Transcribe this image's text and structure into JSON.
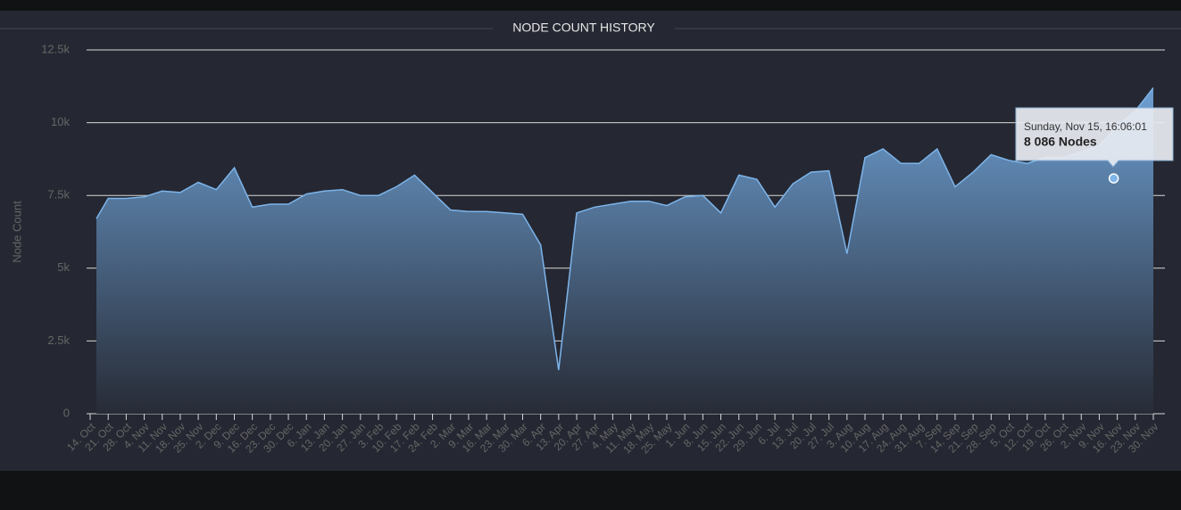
{
  "chart_data": {
    "type": "area",
    "title": "NODE COUNT HISTORY",
    "y_label": "Node Count",
    "categories": [
      "14. Oct",
      "21. Oct",
      "28. Oct",
      "4. Nov",
      "11. Nov",
      "18. Nov",
      "25. Nov",
      "2. Dec",
      "9. Dec",
      "16. Dec",
      "23. Dec",
      "30. Dec",
      "6. Jan",
      "13. Jan",
      "20. Jan",
      "27. Jan",
      "3. Feb",
      "10. Feb",
      "17. Feb",
      "24. Feb",
      "2. Mar",
      "9. Mar",
      "16. Mar",
      "23. Mar",
      "30. Mar",
      "6. Apr",
      "13. Apr",
      "20. Apr",
      "27. Apr",
      "4. May",
      "11. May",
      "18. May",
      "25. May",
      "1. Jun",
      "8. Jun",
      "15. Jun",
      "22. Jun",
      "29. Jun",
      "6. Jul",
      "13. Jul",
      "20. Jul",
      "27. Jul",
      "3. Aug",
      "10. Aug",
      "17. Aug",
      "24. Aug",
      "31. Aug",
      "7. Sep",
      "14. Sep",
      "21. Sep",
      "28. Sep",
      "5. Oct",
      "12. Oct",
      "19. Oct",
      "26. Oct",
      "2. Nov",
      "9. Nov",
      "16. Nov",
      "23. Nov",
      "30. Nov"
    ],
    "values": [
      6700,
      7400,
      7400,
      7450,
      7650,
      7600,
      7950,
      7700,
      8450,
      7100,
      7200,
      7200,
      7550,
      7650,
      7700,
      7500,
      7500,
      7800,
      8200,
      7600,
      7000,
      6950,
      6950,
      6900,
      6850,
      5800,
      1500,
      6900,
      7100,
      7200,
      7300,
      7300,
      7150,
      7450,
      7500,
      6900,
      8200,
      8050,
      7100,
      7900,
      8300,
      8350,
      5500,
      8800,
      9100,
      8600,
      8600,
      9100,
      7800,
      8300,
      8900,
      8700,
      8600,
      8800,
      8800,
      9000,
      9200,
      9900,
      10400,
      11200
    ],
    "color": "#7db4ea",
    "ylim": [
      0,
      12500
    ],
    "yticks": [
      0,
      {
        "value": 2500,
        "label": "2.5k"
      },
      {
        "value": 5000,
        "label": "5k"
      },
      {
        "value": 7500,
        "label": "7.5k"
      },
      {
        "value": 10000,
        "label": "10k"
      },
      {
        "value": 12500,
        "label": "12.5k"
      }
    ],
    "grid": true,
    "tooltip": {
      "label": "Sunday, Nov 15, 16:06:01",
      "value": 8086,
      "value_label": "8 086 Nodes"
    }
  }
}
